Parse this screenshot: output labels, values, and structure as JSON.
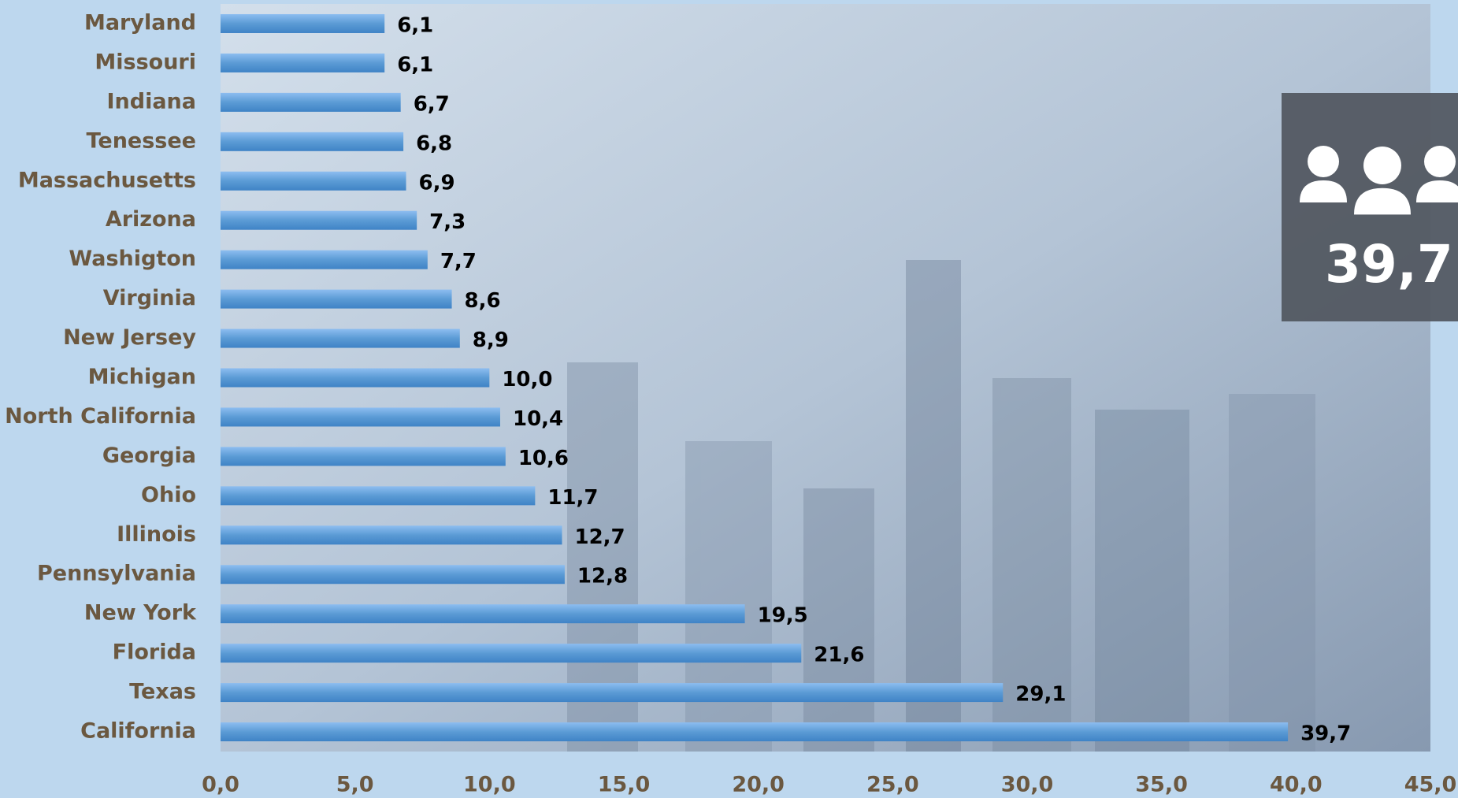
{
  "chart_data": {
    "type": "bar",
    "orientation": "horizontal",
    "categories": [
      "Maryland",
      "Missouri",
      "Indiana",
      "Tenessee",
      "Massachusetts",
      "Arizona",
      "Washigton",
      "Virginia",
      "New Jersey",
      "Michigan",
      "North California",
      "Georgia",
      "Ohio",
      "Illinois",
      "Pennsylvania",
      "New York",
      "Florida",
      "Texas",
      "California"
    ],
    "values": [
      6.1,
      6.1,
      6.7,
      6.8,
      6.9,
      7.3,
      7.7,
      8.6,
      8.9,
      10.0,
      10.4,
      10.6,
      11.7,
      12.7,
      12.8,
      19.5,
      21.6,
      29.1,
      39.7
    ],
    "value_labels": [
      "6,1",
      "6,1",
      "6,7",
      "6,8",
      "6,9",
      "7,3",
      "7,7",
      "8,6",
      "8,9",
      "10,0",
      "10,4",
      "10,6",
      "11,7",
      "12,7",
      "12,8",
      "19,5",
      "21,6",
      "29,1",
      "39,7"
    ],
    "color": "#5b9bd5",
    "xlim": [
      0,
      45
    ],
    "xticks": [
      {
        "value": 0,
        "label": "0,0"
      },
      {
        "value": 5,
        "label": "5,0"
      },
      {
        "value": 10,
        "label": "10,0"
      },
      {
        "value": 15,
        "label": "15,0"
      },
      {
        "value": 20,
        "label": "20,0"
      },
      {
        "value": 25,
        "label": "25,0"
      },
      {
        "value": 30,
        "label": "30,0"
      },
      {
        "value": 35,
        "label": "35,0"
      },
      {
        "value": 40,
        "label": "40,0"
      },
      {
        "value": 45,
        "label": "45,0"
      }
    ],
    "grid": false
  },
  "card": {
    "value": "39,7"
  }
}
